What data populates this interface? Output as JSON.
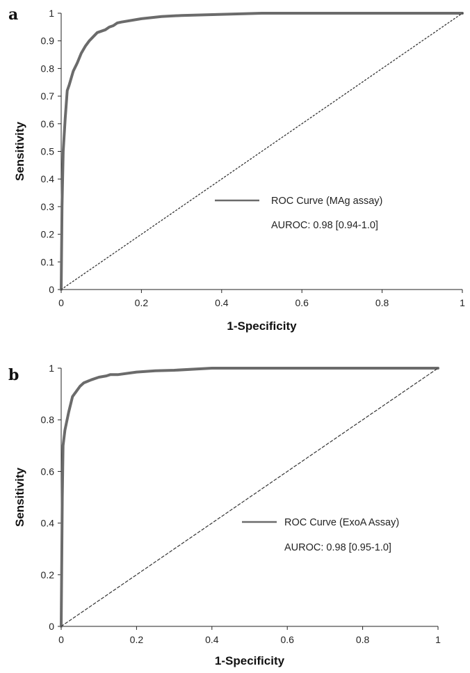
{
  "chart_data": [
    {
      "panel": "a",
      "type": "line",
      "xlabel": "1-Specificity",
      "ylabel": "Sensitivity",
      "xlim": [
        0,
        1
      ],
      "ylim": [
        0,
        1
      ],
      "x_ticks": [
        "0",
        "0.2",
        "0.4",
        "0.6",
        "0.8",
        "1"
      ],
      "y_ticks": [
        "0",
        "0.1",
        "0.2",
        "0.3",
        "0.4",
        "0.5",
        "0.6",
        "0.7",
        "0.8",
        "0.9",
        "1"
      ],
      "legend_position": "center-right",
      "legend_label": "ROC Curve (MAg assay)",
      "annotation": "AUROC: 0.98 [0.94-1.0]",
      "series": [
        {
          "name": "ROC Curve (MAg assay)",
          "color": "#6b6b6b",
          "style": "solid",
          "x": [
            0,
            0.002,
            0.005,
            0.01,
            0.015,
            0.02,
            0.03,
            0.04,
            0.05,
            0.06,
            0.07,
            0.08,
            0.09,
            0.1,
            0.11,
            0.12,
            0.13,
            0.14,
            0.15,
            0.2,
            0.25,
            0.3,
            0.4,
            0.5,
            0.6,
            0.8,
            1.0
          ],
          "y": [
            0,
            0.3,
            0.5,
            0.62,
            0.72,
            0.74,
            0.79,
            0.82,
            0.855,
            0.88,
            0.9,
            0.915,
            0.93,
            0.935,
            0.94,
            0.95,
            0.955,
            0.965,
            0.968,
            0.98,
            0.988,
            0.992,
            0.996,
            1.0,
            1.0,
            1.0,
            1.0
          ]
        },
        {
          "name": "",
          "color": "#333333",
          "style": "dotted",
          "x": [
            0,
            1
          ],
          "y": [
            0,
            1
          ]
        }
      ]
    },
    {
      "panel": "b",
      "type": "line",
      "xlabel": "1-Specificity",
      "ylabel": "Sensitivity",
      "xlim": [
        0,
        1
      ],
      "ylim": [
        0,
        1
      ],
      "x_ticks": [
        "0",
        "0.2",
        "0.4",
        "0.6",
        "0.8",
        "1"
      ],
      "y_ticks": [
        "0",
        "0.2",
        "0.4",
        "0.6",
        "0.8",
        "1"
      ],
      "legend_position": "center-right",
      "legend_label": "ROC Curve (ExoA Assay)",
      "annotation": "AUROC: 0.98 [0.95-1.0]",
      "series": [
        {
          "name": "ROC Curve (ExoA Assay)",
          "color": "#6b6b6b",
          "style": "solid",
          "x": [
            0,
            0.003,
            0.005,
            0.01,
            0.02,
            0.03,
            0.04,
            0.05,
            0.06,
            0.08,
            0.1,
            0.12,
            0.13,
            0.15,
            0.2,
            0.25,
            0.3,
            0.4,
            0.5,
            0.6,
            0.8,
            1.0
          ],
          "y": [
            0,
            0.5,
            0.7,
            0.76,
            0.83,
            0.89,
            0.91,
            0.93,
            0.943,
            0.955,
            0.965,
            0.97,
            0.975,
            0.975,
            0.985,
            0.99,
            0.992,
            1.0,
            1.0,
            1.0,
            1.0,
            1.0
          ]
        },
        {
          "name": "",
          "color": "#333333",
          "style": "dashed",
          "x": [
            0,
            1
          ],
          "y": [
            0,
            1
          ]
        }
      ]
    }
  ]
}
